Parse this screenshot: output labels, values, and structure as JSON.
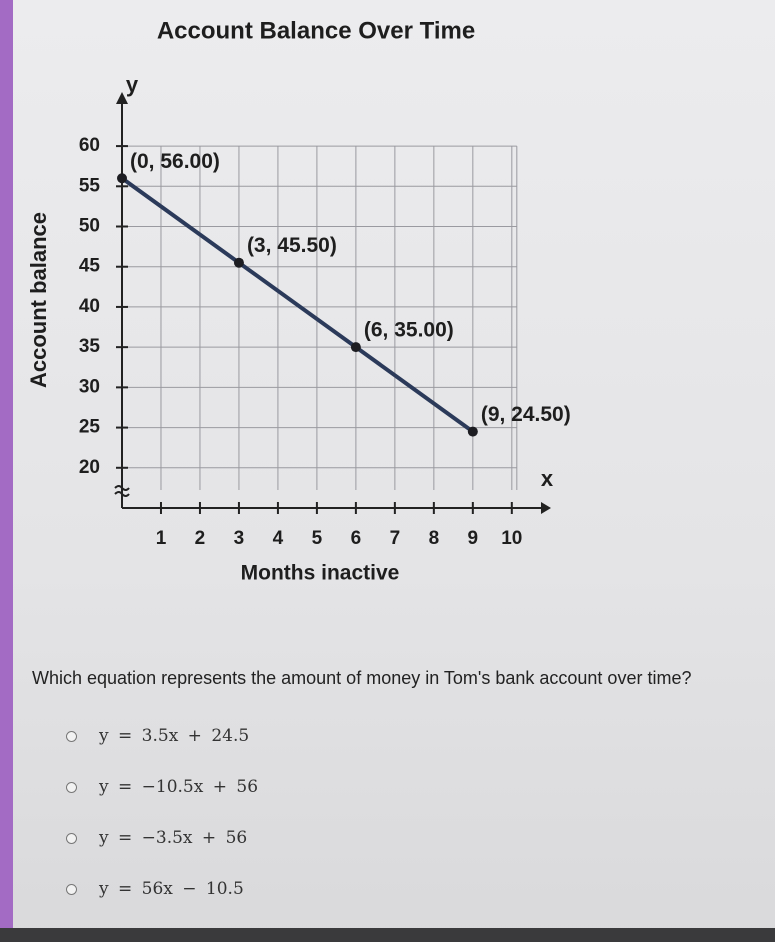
{
  "chart_data": {
    "type": "line",
    "title": "Account Balance Over Time",
    "x_label": "Months inactive",
    "y_label": "Account balance",
    "x_axis_name": "x",
    "y_axis_name": "y",
    "x": [
      0,
      3,
      6,
      9
    ],
    "values": [
      56,
      45.5,
      35,
      24.5
    ],
    "value_labels": [
      "(0, 56.00)",
      "(3, 45.50)",
      "(6, 35.00)",
      "(9, 24.50)"
    ],
    "color": "#2b3a5a",
    "xlim": [
      0,
      10.8
    ],
    "ylim": [
      15,
      62
    ],
    "xticks": [
      1,
      2,
      3,
      4,
      5,
      6,
      7,
      8,
      9,
      10
    ],
    "yticks": [
      20,
      25,
      30,
      35,
      40,
      45,
      50,
      55,
      60
    ],
    "grid": true
  },
  "question": "Which equation represents the amount of money in Tom's bank account over time?",
  "options": [
    "y = 3.5x + 24.5",
    "y = −10.5x + 56",
    "y = −3.5x + 56",
    "y = 56x − 10.5"
  ]
}
